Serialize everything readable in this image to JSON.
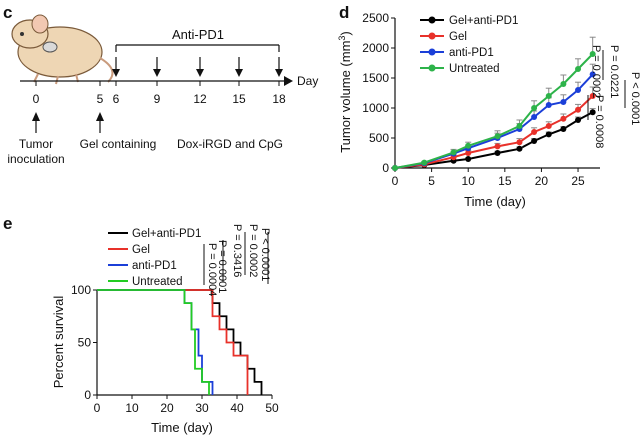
{
  "panel_c": {
    "letter": "c",
    "bracket_label": "Anti-PD1",
    "axis_unit": "Day",
    "days": [
      "0",
      "5",
      "6",
      "9",
      "12",
      "15",
      "18"
    ],
    "tumor_label_line1": "Tumor",
    "tumor_label_line2": "inoculation",
    "gel_label": "Gel containing",
    "dox_label": "Dox-iRGD and CpG",
    "treatment_days": [
      6,
      9,
      12,
      15,
      18
    ]
  },
  "panel_d": {
    "letter": "d",
    "ylabel_main": "Tumor volume (mm",
    "ylabel_sup": "3",
    "ylabel_end": ")",
    "xlabel": "Time (day)",
    "pvalues": [
      {
        "text": "P < 0.0001"
      },
      {
        "text": "P = 0.0221"
      },
      {
        "text": "P = 0.0002"
      },
      {
        "text": "P = 0.0008"
      }
    ]
  },
  "panel_e": {
    "letter": "e",
    "ylabel": "Percent survival",
    "xlabel": "Time (day)",
    "pvalues": [
      {
        "text": "P < 0.0001"
      },
      {
        "text": "P = 0.0002"
      },
      {
        "text": "P = 0.3416"
      },
      {
        "text": "P = 0.0001"
      },
      {
        "text": "P = 0.0004"
      }
    ]
  },
  "chart_data": [
    {
      "type": "line",
      "panel": "d",
      "title": "",
      "xlabel": "Time (day)",
      "ylabel": "Tumor volume (mm3)",
      "xlim": [
        0,
        28
      ],
      "ylim": [
        0,
        2500
      ],
      "xticks": [
        0,
        5,
        10,
        15,
        20,
        25
      ],
      "yticks": [
        0,
        500,
        1000,
        1500,
        2000,
        2500
      ],
      "x": [
        0,
        4,
        8,
        10,
        14,
        17,
        19,
        21,
        23,
        25,
        27
      ],
      "legend_position": "top-left",
      "series": [
        {
          "name": "Gel+anti-PD1",
          "color": "#000000",
          "values": [
            0,
            50,
            120,
            150,
            250,
            320,
            450,
            560,
            650,
            800,
            930
          ],
          "errors": [
            0,
            10,
            20,
            20,
            30,
            30,
            40,
            40,
            40,
            50,
            60
          ]
        },
        {
          "name": "Gel",
          "color": "#e8312a",
          "values": [
            0,
            60,
            180,
            250,
            360,
            430,
            600,
            700,
            820,
            970,
            1200
          ],
          "errors": [
            0,
            10,
            30,
            40,
            50,
            60,
            70,
            70,
            80,
            90,
            150
          ]
        },
        {
          "name": "anti-PD1",
          "color": "#1b3fd8",
          "values": [
            0,
            80,
            240,
            330,
            500,
            650,
            850,
            1050,
            1100,
            1300,
            1560
          ],
          "errors": [
            0,
            20,
            40,
            50,
            80,
            90,
            100,
            120,
            120,
            130,
            170
          ]
        },
        {
          "name": "Untreated",
          "color": "#2db34a",
          "values": [
            0,
            90,
            260,
            370,
            530,
            700,
            1000,
            1200,
            1400,
            1650,
            1900
          ],
          "errors": [
            0,
            20,
            50,
            60,
            90,
            100,
            120,
            130,
            150,
            170,
            280
          ]
        }
      ]
    },
    {
      "type": "line",
      "subtype": "kaplan-meier step",
      "panel": "e",
      "title": "",
      "xlabel": "Time (day)",
      "ylabel": "Percent survival",
      "xlim": [
        0,
        50
      ],
      "ylim": [
        0,
        100
      ],
      "xticks": [
        0,
        10,
        20,
        30,
        40,
        50
      ],
      "yticks": [
        0,
        50,
        100
      ],
      "legend_position": "top-left",
      "series": [
        {
          "name": "Gel+anti-PD1",
          "color": "#000000",
          "steps": [
            [
              0,
              100
            ],
            [
              33,
              100
            ],
            [
              33,
              87.5
            ],
            [
              35,
              87.5
            ],
            [
              35,
              75
            ],
            [
              37,
              75
            ],
            [
              37,
              62.5
            ],
            [
              39,
              62.5
            ],
            [
              39,
              50
            ],
            [
              41,
              50
            ],
            [
              41,
              37.5
            ],
            [
              43,
              37.5
            ],
            [
              43,
              25
            ],
            [
              45,
              25
            ],
            [
              45,
              12.5
            ],
            [
              47,
              12.5
            ],
            [
              47,
              0
            ]
          ]
        },
        {
          "name": "Gel",
          "color": "#e8312a",
          "steps": [
            [
              0,
              100
            ],
            [
              33,
              100
            ],
            [
              33,
              75
            ],
            [
              35,
              75
            ],
            [
              35,
              62.5
            ],
            [
              37,
              62.5
            ],
            [
              37,
              50
            ],
            [
              39,
              50
            ],
            [
              39,
              37.5
            ],
            [
              43,
              37.5
            ],
            [
              43,
              0
            ]
          ]
        },
        {
          "name": "anti-PD1",
          "color": "#1b3fd8",
          "steps": [
            [
              0,
              100
            ],
            [
              25,
              100
            ],
            [
              25,
              87.5
            ],
            [
              27,
              87.5
            ],
            [
              27,
              62.5
            ],
            [
              29,
              62.5
            ],
            [
              29,
              37.5
            ],
            [
              30,
              37.5
            ],
            [
              30,
              12.5
            ],
            [
              33,
              12.5
            ],
            [
              33,
              0
            ]
          ]
        },
        {
          "name": "Untreated",
          "color": "#22cc22",
          "steps": [
            [
              0,
              100
            ],
            [
              25,
              100
            ],
            [
              25,
              87.5
            ],
            [
              27,
              87.5
            ],
            [
              27,
              62.5
            ],
            [
              28,
              62.5
            ],
            [
              28,
              25
            ],
            [
              30,
              25
            ],
            [
              30,
              12.5
            ],
            [
              32,
              12.5
            ],
            [
              32,
              0
            ]
          ]
        }
      ]
    }
  ]
}
